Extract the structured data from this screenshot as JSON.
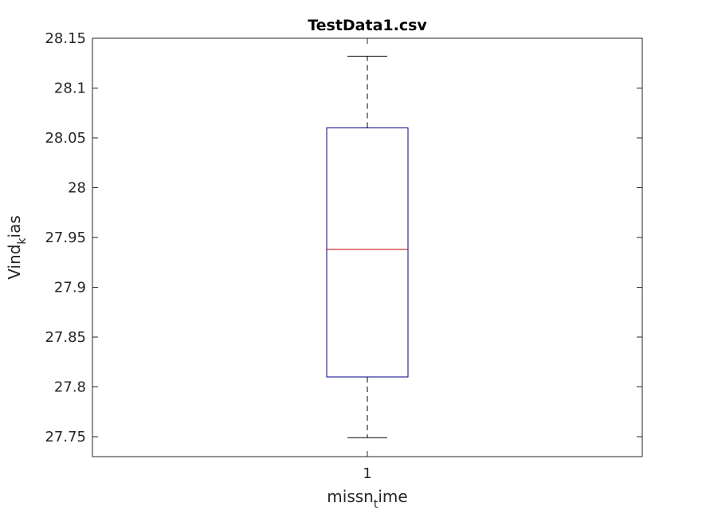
{
  "chart_data": {
    "type": "boxplot",
    "title": "TestData1.csv",
    "xlabel": {
      "base": "missn",
      "subscript": "t",
      "rest": "ime"
    },
    "ylabel": {
      "base": "Vind",
      "subscript": "k",
      "rest": "ias"
    },
    "categories": [
      "1"
    ],
    "ylim": [
      27.73,
      28.15
    ],
    "yticks": [
      27.75,
      27.8,
      27.85,
      27.9,
      27.95,
      28,
      28.05,
      28.1,
      28.15
    ],
    "ytick_labels": [
      "27.75",
      "27.8",
      "27.85",
      "27.9",
      "27.95",
      "28",
      "28.05",
      "28.1",
      "28.15"
    ],
    "grid": false,
    "boxes": [
      {
        "category": "1",
        "whisker_low": 27.749,
        "q1": 27.81,
        "median": 27.938,
        "q3": 28.06,
        "whisker_high": 28.132
      }
    ],
    "colors": {
      "box": "#00008B",
      "median": "#CC0000",
      "whisker": "#000000",
      "axes": "#262626"
    }
  }
}
